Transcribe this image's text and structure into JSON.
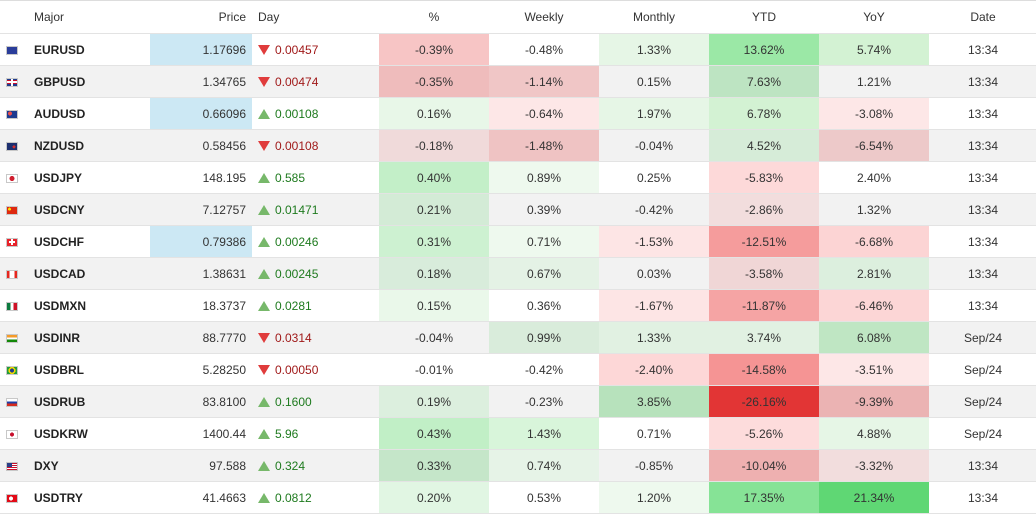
{
  "columns": {
    "major": "Major",
    "price": "Price",
    "day": "Day",
    "pct": "%",
    "weekly": "Weekly",
    "monthly": "Monthly",
    "ytd": "YTD",
    "yoy": "YoY",
    "date": "Date"
  },
  "rows": [
    {
      "flag": "flag-eu-icon",
      "name": "EURUSD",
      "price": "1.17696",
      "price_bg": "#cce8f4",
      "day": "0.00457",
      "dir": "down",
      "pct": "-0.39%",
      "pct_bg": "#f7c5c5",
      "weekly": "-0.48%",
      "weekly_bg": "#ffffff",
      "monthly": "1.33%",
      "monthly_bg": "#e6f6e6",
      "ytd": "13.62%",
      "ytd_bg": "#9be8a6",
      "yoy": "5.74%",
      "yoy_bg": "#d3f2d3",
      "date": "13:34"
    },
    {
      "flag": "flag-gb-icon",
      "name": "GBPUSD",
      "price": "1.34765",
      "price_bg": "",
      "day": "0.00474",
      "dir": "down",
      "pct": "-0.35%",
      "pct_bg": "#efbcbc",
      "weekly": "-1.14%",
      "weekly_bg": "#f0c6c6",
      "monthly": "0.15%",
      "monthly_bg": "",
      "ytd": "7.63%",
      "ytd_bg": "#bde4c2",
      "yoy": "1.21%",
      "yoy_bg": "",
      "date": "13:34"
    },
    {
      "flag": "flag-au-icon",
      "name": "AUDUSD",
      "price": "0.66096",
      "price_bg": "#cce8f4",
      "day": "0.00108",
      "dir": "up",
      "pct": "0.16%",
      "pct_bg": "#e8f7e8",
      "weekly": "-0.64%",
      "weekly_bg": "#fde7e7",
      "monthly": "1.97%",
      "monthly_bg": "#e6f6e6",
      "ytd": "6.78%",
      "ytd_bg": "#d3f2d3",
      "yoy": "-3.08%",
      "yoy_bg": "#fde7e7",
      "date": "13:34"
    },
    {
      "flag": "flag-nz-icon",
      "name": "NZDUSD",
      "price": "0.58456",
      "price_bg": "",
      "day": "0.00108",
      "dir": "down",
      "pct": "-0.18%",
      "pct_bg": "#f0dada",
      "weekly": "-1.48%",
      "weekly_bg": "#efc3c3",
      "monthly": "-0.04%",
      "monthly_bg": "",
      "ytd": "4.52%",
      "ytd_bg": "#d6ecd8",
      "yoy": "-6.54%",
      "yoy_bg": "#edc9c9",
      "date": "13:34"
    },
    {
      "flag": "flag-jp-icon",
      "name": "USDJPY",
      "price": "148.195",
      "price_bg": "",
      "day": "0.585",
      "dir": "up",
      "pct": "0.40%",
      "pct_bg": "#c3efc8",
      "weekly": "0.89%",
      "weekly_bg": "#eef9ee",
      "monthly": "0.25%",
      "monthly_bg": "",
      "ytd": "-5.83%",
      "ytd_bg": "#fdd9d9",
      "yoy": "2.40%",
      "yoy_bg": "",
      "date": "13:34"
    },
    {
      "flag": "flag-cn-icon",
      "name": "USDCNY",
      "price": "7.12757",
      "price_bg": "",
      "day": "0.01471",
      "dir": "up",
      "pct": "0.21%",
      "pct_bg": "#d3ebd6",
      "weekly": "0.39%",
      "weekly_bg": "",
      "monthly": "-0.42%",
      "monthly_bg": "",
      "ytd": "-2.86%",
      "ytd_bg": "#f2dddd",
      "yoy": "1.32%",
      "yoy_bg": "",
      "date": "13:34"
    },
    {
      "flag": "flag-ch-icon",
      "name": "USDCHF",
      "price": "0.79386",
      "price_bg": "#cce8f4",
      "day": "0.00246",
      "dir": "up",
      "pct": "0.31%",
      "pct_bg": "#cdf1d1",
      "weekly": "0.71%",
      "weekly_bg": "#eef9ee",
      "monthly": "-1.53%",
      "monthly_bg": "#fde5e5",
      "ytd": "-12.51%",
      "ytd_bg": "#f59c9c",
      "yoy": "-6.68%",
      "yoy_bg": "#fcd4d4",
      "date": "13:34"
    },
    {
      "flag": "flag-ca-icon",
      "name": "USDCAD",
      "price": "1.38631",
      "price_bg": "",
      "day": "0.00245",
      "dir": "up",
      "pct": "0.18%",
      "pct_bg": "#d8ecdb",
      "weekly": "0.67%",
      "weekly_bg": "#e4f2e5",
      "monthly": "0.03%",
      "monthly_bg": "",
      "ytd": "-3.58%",
      "ytd_bg": "#f0d6d6",
      "yoy": "2.81%",
      "yoy_bg": "#dcefde",
      "date": "13:34"
    },
    {
      "flag": "flag-mx-icon",
      "name": "USDMXN",
      "price": "18.3737",
      "price_bg": "",
      "day": "0.0281",
      "dir": "up",
      "pct": "0.15%",
      "pct_bg": "#eaf8ea",
      "weekly": "0.36%",
      "weekly_bg": "",
      "monthly": "-1.67%",
      "monthly_bg": "#fde5e5",
      "ytd": "-11.87%",
      "ytd_bg": "#f5a4a4",
      "yoy": "-6.46%",
      "yoy_bg": "#fcd6d6",
      "date": "13:34"
    },
    {
      "flag": "flag-in-icon",
      "name": "USDINR",
      "price": "88.7770",
      "price_bg": "",
      "day": "0.0314",
      "dir": "down",
      "pct": "-0.04%",
      "pct_bg": "",
      "weekly": "0.99%",
      "weekly_bg": "#d9ecdb",
      "monthly": "1.33%",
      "monthly_bg": "#e1f1e2",
      "ytd": "3.74%",
      "ytd_bg": "#e1f1e2",
      "yoy": "6.08%",
      "yoy_bg": "#bfe6c3",
      "date": "Sep/24"
    },
    {
      "flag": "flag-br-icon",
      "name": "USDBRL",
      "price": "5.28250",
      "price_bg": "",
      "day": "0.00050",
      "dir": "down",
      "pct": "-0.01%",
      "pct_bg": "",
      "weekly": "-0.42%",
      "weekly_bg": "",
      "monthly": "-2.40%",
      "monthly_bg": "#fdd7d7",
      "ytd": "-14.58%",
      "ytd_bg": "#f59494",
      "yoy": "-3.51%",
      "yoy_bg": "#fde7e7",
      "date": "Sep/24"
    },
    {
      "flag": "flag-ru-icon",
      "name": "USDRUB",
      "price": "83.8100",
      "price_bg": "",
      "day": "0.1600",
      "dir": "up",
      "pct": "0.19%",
      "pct_bg": "#dcefde",
      "weekly": "-0.23%",
      "weekly_bg": "",
      "monthly": "3.85%",
      "monthly_bg": "#b7e2bc",
      "ytd": "-26.16%",
      "ytd_bg": "#e23535",
      "yoy": "-9.39%",
      "yoy_bg": "#ebb3b3",
      "date": "Sep/24"
    },
    {
      "flag": "flag-kr-icon",
      "name": "USDKRW",
      "price": "1400.44",
      "price_bg": "",
      "day": "5.96",
      "dir": "up",
      "pct": "0.43%",
      "pct_bg": "#c1efc6",
      "weekly": "1.43%",
      "weekly_bg": "#d8f5da",
      "monthly": "0.71%",
      "monthly_bg": "",
      "ytd": "-5.26%",
      "ytd_bg": "#fddcdc",
      "yoy": "4.88%",
      "yoy_bg": "#e6f6e6",
      "date": "Sep/24"
    },
    {
      "flag": "flag-us-icon",
      "name": "DXY",
      "price": "97.588",
      "price_bg": "",
      "day": "0.324",
      "dir": "up",
      "pct": "0.33%",
      "pct_bg": "#c5e6c9",
      "weekly": "0.74%",
      "weekly_bg": "#e6f3e7",
      "monthly": "-0.85%",
      "monthly_bg": "",
      "ytd": "-10.04%",
      "ytd_bg": "#eeb0b0",
      "yoy": "-3.32%",
      "yoy_bg": "#f2dddd",
      "date": "13:34"
    },
    {
      "flag": "flag-tr-icon",
      "name": "USDTRY",
      "price": "41.4663",
      "price_bg": "",
      "day": "0.0812",
      "dir": "up",
      "pct": "0.20%",
      "pct_bg": "#e1f6e3",
      "weekly": "0.53%",
      "weekly_bg": "",
      "monthly": "1.20%",
      "monthly_bg": "#eef9ee",
      "ytd": "17.35%",
      "ytd_bg": "#86e396",
      "yoy": "21.34%",
      "yoy_bg": "#5fd774",
      "date": "13:34"
    }
  ]
}
